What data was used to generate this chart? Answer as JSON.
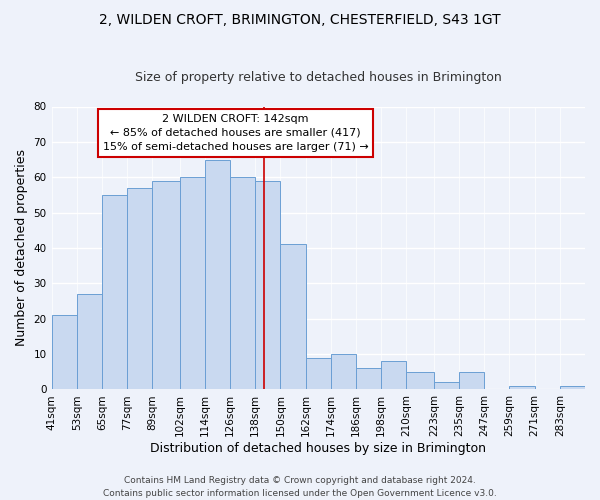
{
  "title": "2, WILDEN CROFT, BRIMINGTON, CHESTERFIELD, S43 1GT",
  "subtitle": "Size of property relative to detached houses in Brimington",
  "xlabel": "Distribution of detached houses by size in Brimington",
  "ylabel": "Number of detached properties",
  "bin_labels": [
    "41sqm",
    "53sqm",
    "65sqm",
    "77sqm",
    "89sqm",
    "102sqm",
    "114sqm",
    "126sqm",
    "138sqm",
    "150sqm",
    "162sqm",
    "174sqm",
    "186sqm",
    "198sqm",
    "210sqm",
    "223sqm",
    "235sqm",
    "247sqm",
    "259sqm",
    "271sqm",
    "283sqm"
  ],
  "bar_values": [
    21,
    27,
    55,
    57,
    59,
    60,
    65,
    60,
    59,
    41,
    9,
    10,
    6,
    8,
    5,
    2,
    5,
    0,
    1,
    0,
    1
  ],
  "bar_color": "#c9d9f0",
  "bar_edge_color": "#6b9fd4",
  "property_line_x": 142,
  "bin_edges": [
    41,
    53,
    65,
    77,
    89,
    102,
    114,
    126,
    138,
    150,
    162,
    174,
    186,
    198,
    210,
    223,
    235,
    247,
    259,
    271,
    283,
    295
  ],
  "annotation_title": "2 WILDEN CROFT: 142sqm",
  "annotation_line1": "← 85% of detached houses are smaller (417)",
  "annotation_line2": "15% of semi-detached houses are larger (71) →",
  "annotation_box_color": "#ffffff",
  "annotation_box_edge_color": "#cc0000",
  "vline_color": "#cc0000",
  "ylim": [
    0,
    80
  ],
  "yticks": [
    0,
    10,
    20,
    30,
    40,
    50,
    60,
    70,
    80
  ],
  "footer_line1": "Contains HM Land Registry data © Crown copyright and database right 2024.",
  "footer_line2": "Contains public sector information licensed under the Open Government Licence v3.0.",
  "background_color": "#eef2fa",
  "grid_color": "#ffffff",
  "title_fontsize": 10,
  "subtitle_fontsize": 9,
  "axis_label_fontsize": 9,
  "tick_fontsize": 7.5,
  "annotation_fontsize": 8,
  "footer_fontsize": 6.5
}
